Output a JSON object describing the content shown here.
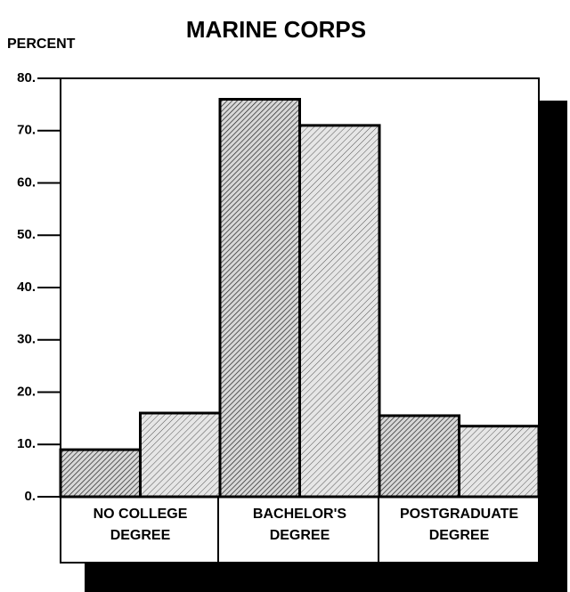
{
  "chart_data": {
    "type": "bar",
    "title": "MARINE CORPS",
    "y_label": "PERCENT",
    "categories": [
      "NO COLLEGE\nDEGREE",
      "BACHELOR'S\nDEGREE",
      "POSTGRADUATE\nDEGREE"
    ],
    "series": [
      {
        "color": "#222222",
        "pattern": "dense-hatch",
        "values": [
          9,
          76,
          15.5
        ]
      },
      {
        "color": "#444444",
        "pattern": "light-hatch",
        "values": [
          16,
          71,
          13.5
        ]
      }
    ],
    "ylim": [
      0,
      80
    ],
    "yticks": [
      {
        "value": 0,
        "label": "0."
      },
      {
        "value": 10,
        "label": "10."
      },
      {
        "value": 20,
        "label": "20."
      },
      {
        "value": 30,
        "label": "30."
      },
      {
        "value": 40,
        "label": "40."
      },
      {
        "value": 50,
        "label": "50."
      },
      {
        "value": 60,
        "label": "60."
      },
      {
        "value": 70,
        "label": "70."
      },
      {
        "value": 80,
        "label": "80."
      }
    ]
  }
}
